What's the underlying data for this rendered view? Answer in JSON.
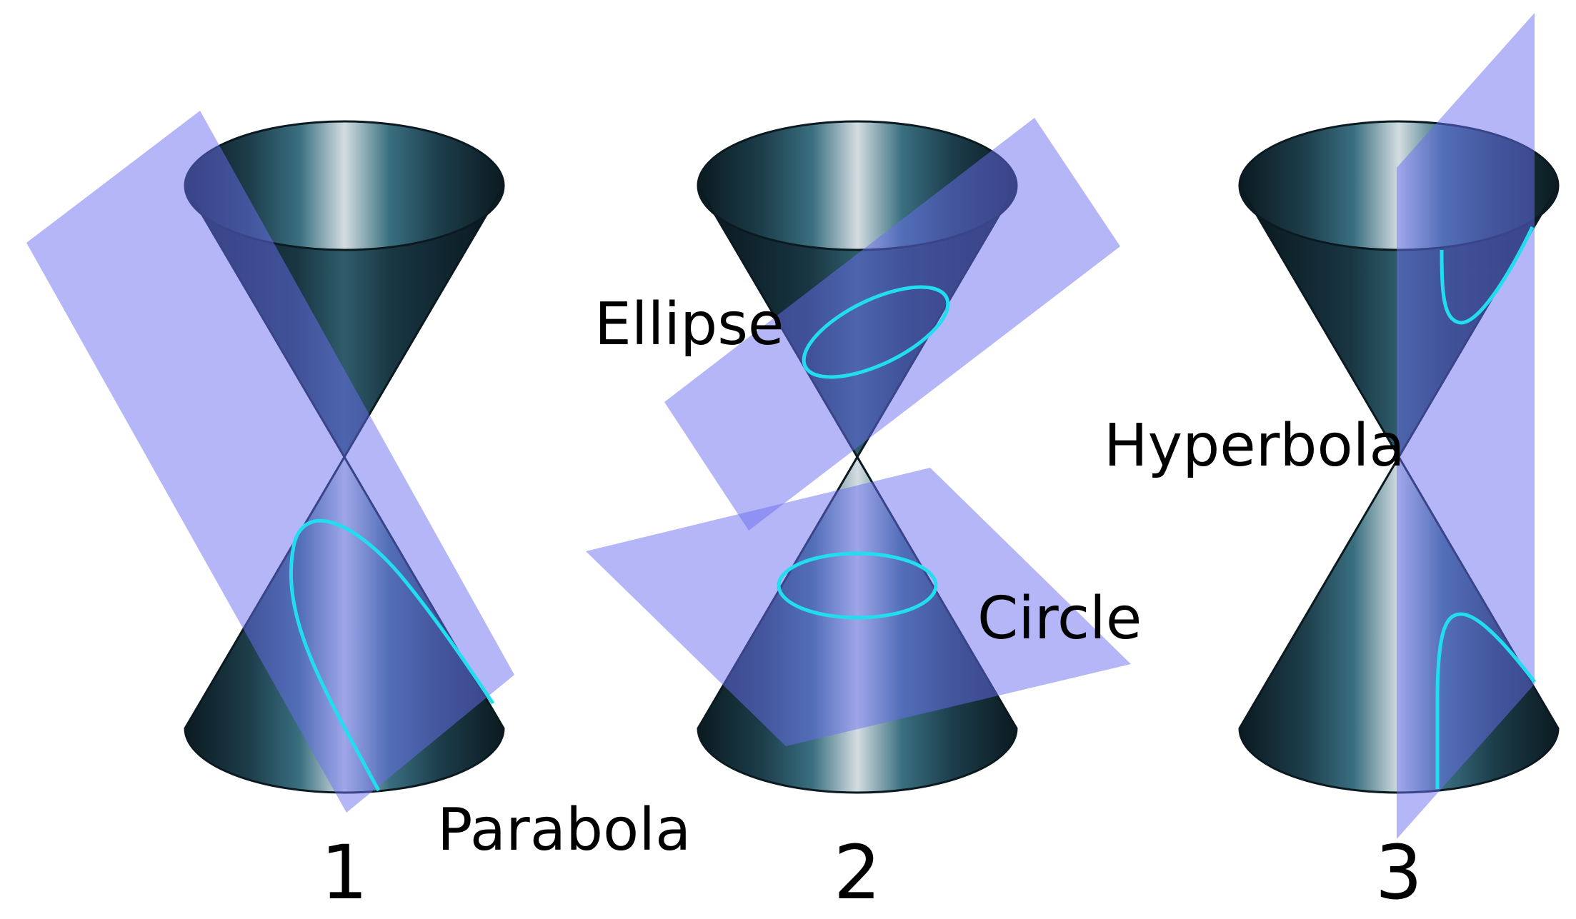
{
  "panels": [
    {
      "number": "1",
      "sections": [
        "Parabola"
      ]
    },
    {
      "number": "2",
      "sections": [
        "Ellipse",
        "Circle"
      ]
    },
    {
      "number": "3",
      "sections": [
        "Hyperbola"
      ]
    }
  ],
  "colors": {
    "background": "#ffffff",
    "cone_dark": "#0b1a20",
    "cone_mid": "#2b5a6c",
    "cone_highlight": "#d3dde1",
    "plane_fill": "#6a6df0",
    "plane_overlap": "#0d1a8a",
    "curve": "#22ddf0",
    "text": "#000000"
  },
  "icons": [
    "double-cone",
    "cutting-plane",
    "conic-curve"
  ]
}
